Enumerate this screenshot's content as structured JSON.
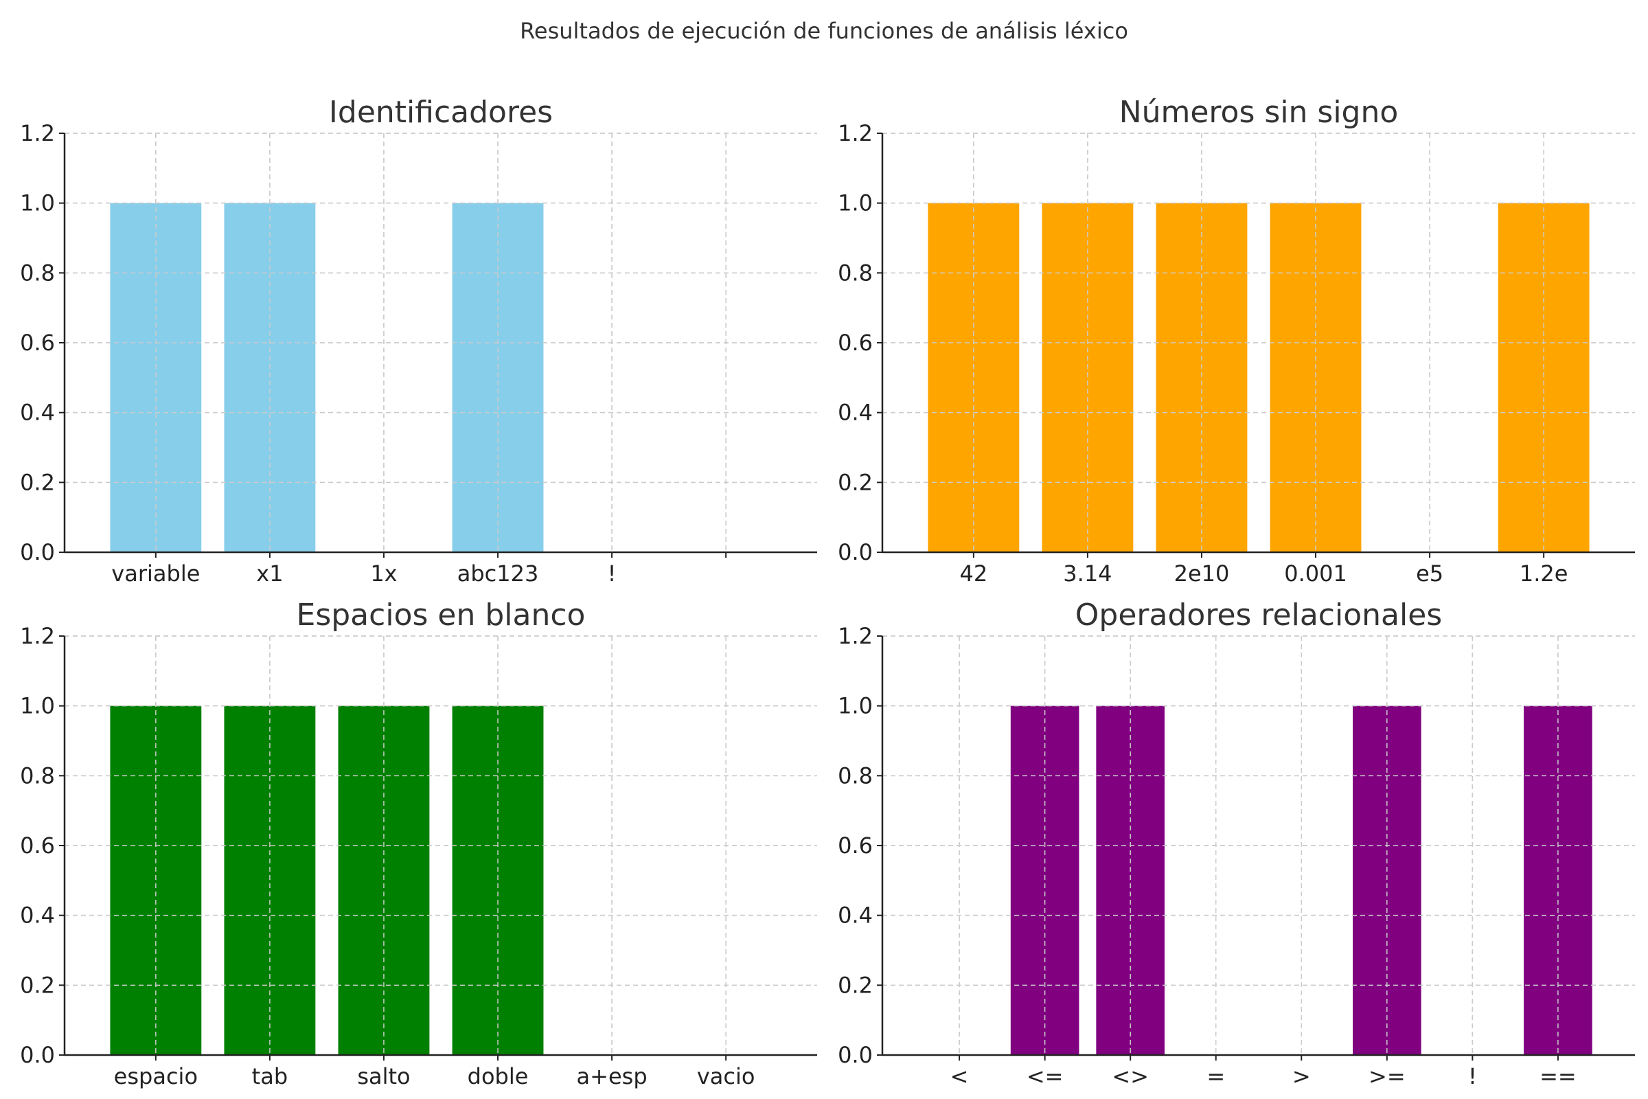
{
  "figure": {
    "suptitle": "Resultados de ejecución de funciones de análisis léxico"
  },
  "chart_data": [
    {
      "type": "bar",
      "title": "Identificadores",
      "color": "#87CEEB",
      "categories": [
        "variable",
        "x1",
        "1x",
        "abc123",
        "!",
        ""
      ],
      "values": [
        1,
        1,
        0,
        1,
        0,
        0
      ],
      "ylim": [
        0,
        1.2
      ],
      "yticks": [
        0.0,
        0.2,
        0.4,
        0.6,
        0.8,
        1.0,
        1.2
      ],
      "grid": true
    },
    {
      "type": "bar",
      "title": "Números sin signo",
      "color": "#FFA500",
      "categories": [
        "42",
        "3.14",
        "2e10",
        "0.001",
        "e5",
        "1.2e"
      ],
      "values": [
        1,
        1,
        1,
        1,
        0,
        1
      ],
      "ylim": [
        0,
        1.2
      ],
      "yticks": [
        0.0,
        0.2,
        0.4,
        0.6,
        0.8,
        1.0,
        1.2
      ],
      "grid": true
    },
    {
      "type": "bar",
      "title": "Espacios en blanco",
      "color": "#008000",
      "categories": [
        "espacio",
        "tab",
        "salto",
        "doble",
        "a+esp",
        "vacio"
      ],
      "values": [
        1,
        1,
        1,
        1,
        0,
        0
      ],
      "ylim": [
        0,
        1.2
      ],
      "yticks": [
        0.0,
        0.2,
        0.4,
        0.6,
        0.8,
        1.0,
        1.2
      ],
      "grid": true
    },
    {
      "type": "bar",
      "title": "Operadores relacionales",
      "color": "#800080",
      "categories": [
        "<",
        "<=",
        "<>",
        "=",
        ">",
        ">=",
        "!",
        "=="
      ],
      "values": [
        0,
        1,
        1,
        0,
        0,
        1,
        0,
        1
      ],
      "ylim": [
        0,
        1.2
      ],
      "yticks": [
        0.0,
        0.2,
        0.4,
        0.6,
        0.8,
        1.0,
        1.2
      ],
      "grid": true
    }
  ]
}
